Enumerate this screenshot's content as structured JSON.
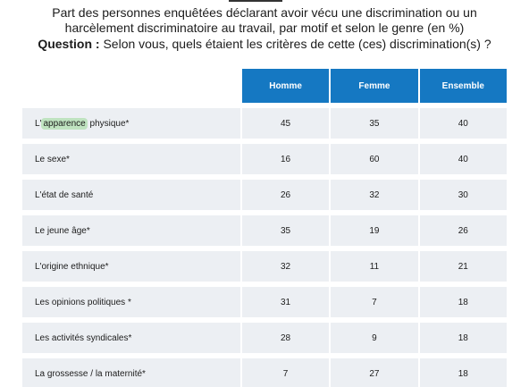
{
  "heading": {
    "title": "Part des personnes enquêtées déclarant avoir vécu une discrimination ou un harcèlement discriminatoire au travail, par motif et selon le genre (en %)",
    "question_label": "Question :",
    "question_text": "Selon vous, quels étaient les critères de cette (ces) discrimination(s) ?"
  },
  "table": {
    "columns": [
      "Homme",
      "Femme",
      "Ensemble"
    ],
    "rows": [
      {
        "label_pre": "L'",
        "label_highlight": "apparence",
        "label_post": " physique*",
        "values": [
          "45",
          "35",
          "40"
        ]
      },
      {
        "label": "Le sexe*",
        "values": [
          "16",
          "60",
          "40"
        ]
      },
      {
        "label": "L'état de santé",
        "values": [
          "26",
          "32",
          "30"
        ]
      },
      {
        "label": "Le jeune âge*",
        "values": [
          "35",
          "19",
          "26"
        ]
      },
      {
        "label": "L'origine ethnique*",
        "values": [
          "32",
          "11",
          "21"
        ]
      },
      {
        "label": "Les opinions politiques *",
        "values": [
          "31",
          "7",
          "18"
        ]
      },
      {
        "label": "Les activités syndicales*",
        "values": [
          "28",
          "9",
          "18"
        ]
      },
      {
        "label": "La grossesse / la maternité*",
        "values": [
          "7",
          "27",
          "18"
        ]
      }
    ]
  },
  "colors": {
    "header_blue": "#1578c2",
    "row_background": "#eceff3",
    "highlight_green": "#bfe3c0"
  }
}
